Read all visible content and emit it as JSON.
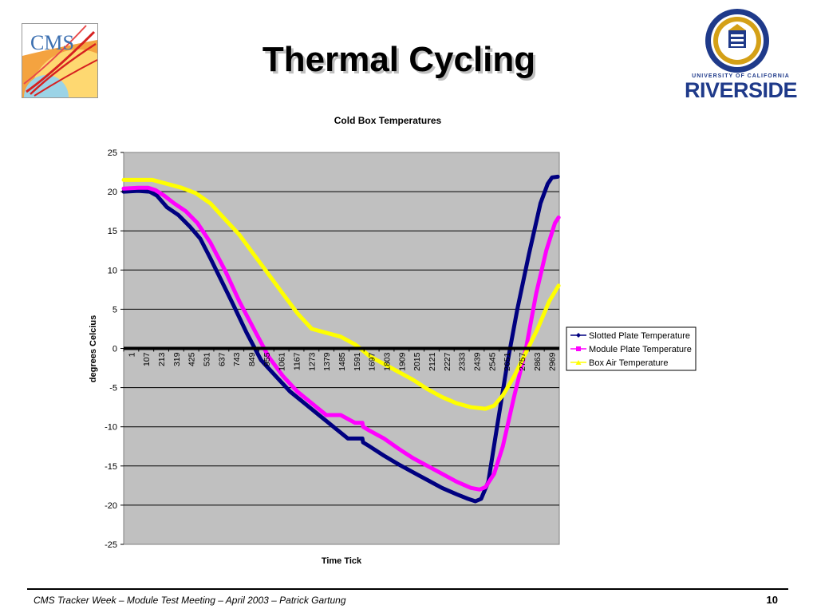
{
  "slide": {
    "title": "Thermal Cycling",
    "logo_left_text": "CMS",
    "university_caption": "UNIVERSITY OF CALIFORNIA",
    "university_name": "RIVERSIDE",
    "footer": "CMS Tracker Week – Module Test Meeting – April 2003 – Patrick Gartung",
    "page_number": "10"
  },
  "colors": {
    "plot_background": "#c0c0c0",
    "slotted": "#000080",
    "module": "#ff00ff",
    "air": "#ffff00",
    "seal_blue": "#1f3a8a",
    "seal_gold": "#d4a017"
  },
  "chart_data": {
    "type": "line",
    "title": "Cold Box Temperatures",
    "xlabel": "Time Tick",
    "ylabel": "degrees Celcius",
    "ylim": [
      -25,
      25
    ],
    "xlim": [
      1,
      3010
    ],
    "y_ticks": [
      25,
      20,
      15,
      10,
      5,
      0,
      -5,
      -10,
      -15,
      -20,
      -25
    ],
    "x_ticks": [
      "1",
      "107",
      "213",
      "319",
      "425",
      "531",
      "637",
      "743",
      "849",
      "955",
      "1061",
      "1167",
      "1273",
      "1379",
      "1485",
      "1591",
      "1697",
      "1803",
      "1909",
      "2015",
      "2121",
      "2227",
      "2333",
      "2439",
      "2545",
      "2651",
      "2757",
      "2863",
      "2969"
    ],
    "grid": true,
    "legend_position": "right",
    "series": [
      {
        "name": "Slotted Plate Temperature",
        "color": "#000080",
        "marker": "diamond",
        "x": [
          1,
          100,
          180,
          230,
          300,
          380,
          460,
          530,
          600,
          680,
          760,
          850,
          950,
          1050,
          1150,
          1250,
          1350,
          1450,
          1550,
          1650,
          1655,
          1700,
          1800,
          1900,
          2000,
          2100,
          2200,
          2300,
          2380,
          2430,
          2470,
          2520,
          2580,
          2650,
          2720,
          2800,
          2880,
          2930,
          2960,
          3000
        ],
        "y": [
          20,
          20.1,
          20,
          19.5,
          18,
          17,
          15.5,
          14,
          11.5,
          8.5,
          5.5,
          2,
          -1.5,
          -3.5,
          -5.5,
          -7,
          -8.5,
          -10,
          -11.5,
          -11.5,
          -12,
          -12.5,
          -13.7,
          -14.8,
          -15.8,
          -16.8,
          -17.8,
          -18.6,
          -19.2,
          -19.5,
          -19.2,
          -17,
          -10,
          -2,
          5,
          12,
          18.5,
          21,
          21.8,
          21.9
        ]
      },
      {
        "name": "Module Plate Temperature",
        "color": "#ff00ff",
        "marker": "square",
        "x": [
          1,
          100,
          170,
          220,
          280,
          350,
          430,
          510,
          600,
          700,
          800,
          900,
          1000,
          1100,
          1200,
          1300,
          1400,
          1500,
          1600,
          1650,
          1655,
          1700,
          1800,
          1900,
          2000,
          2100,
          2200,
          2300,
          2400,
          2460,
          2500,
          2560,
          2620,
          2700,
          2780,
          2850,
          2920,
          2980,
          3005
        ],
        "y": [
          20.4,
          20.5,
          20.5,
          20.2,
          19.5,
          18.5,
          17.5,
          16,
          13.5,
          10,
          6,
          2.5,
          -1,
          -3.5,
          -5.5,
          -7,
          -8.5,
          -8.5,
          -9.5,
          -9.5,
          -10,
          -10.5,
          -11.5,
          -12.8,
          -14,
          -15,
          -16,
          -17,
          -17.8,
          -18,
          -17.7,
          -16,
          -12.5,
          -6,
          0,
          7,
          12.5,
          16,
          16.7
        ]
      },
      {
        "name": "Box Air Temperature",
        "color": "#ffff00",
        "marker": "triangle",
        "x": [
          1,
          100,
          200,
          300,
          400,
          500,
          600,
          700,
          800,
          900,
          1000,
          1100,
          1200,
          1300,
          1400,
          1500,
          1600,
          1655,
          1700,
          1800,
          1900,
          2000,
          2100,
          2200,
          2300,
          2400,
          2500,
          2560,
          2620,
          2700,
          2780,
          2860,
          2940,
          3005
        ],
        "y": [
          21.5,
          21.5,
          21.5,
          21,
          20.5,
          19.8,
          18.5,
          16.5,
          14.5,
          12,
          9.5,
          7,
          4.5,
          2.5,
          2,
          1.5,
          0.5,
          -0.3,
          -1,
          -2,
          -3,
          -4,
          -5.2,
          -6.2,
          -7,
          -7.5,
          -7.7,
          -7.3,
          -6,
          -3.5,
          -0.5,
          2.5,
          6,
          8
        ]
      }
    ]
  }
}
